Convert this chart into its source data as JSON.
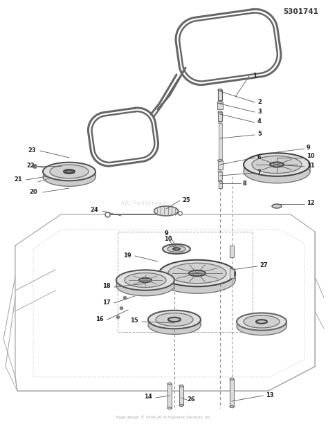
{
  "background_color": "#ffffff",
  "part_number": "5301741",
  "watermark": "ARI PartStream",
  "copyright": "Page design © 2004-2010 Naiswork Services, Inc.",
  "fig_width": 4.74,
  "fig_height": 6.13,
  "dpi": 100,
  "text_color": "#222222",
  "label_fontsize": 6.0,
  "part_number_fontsize": 7.5,
  "watermark_fontsize": 6.5,
  "copyright_fontsize": 4.0
}
